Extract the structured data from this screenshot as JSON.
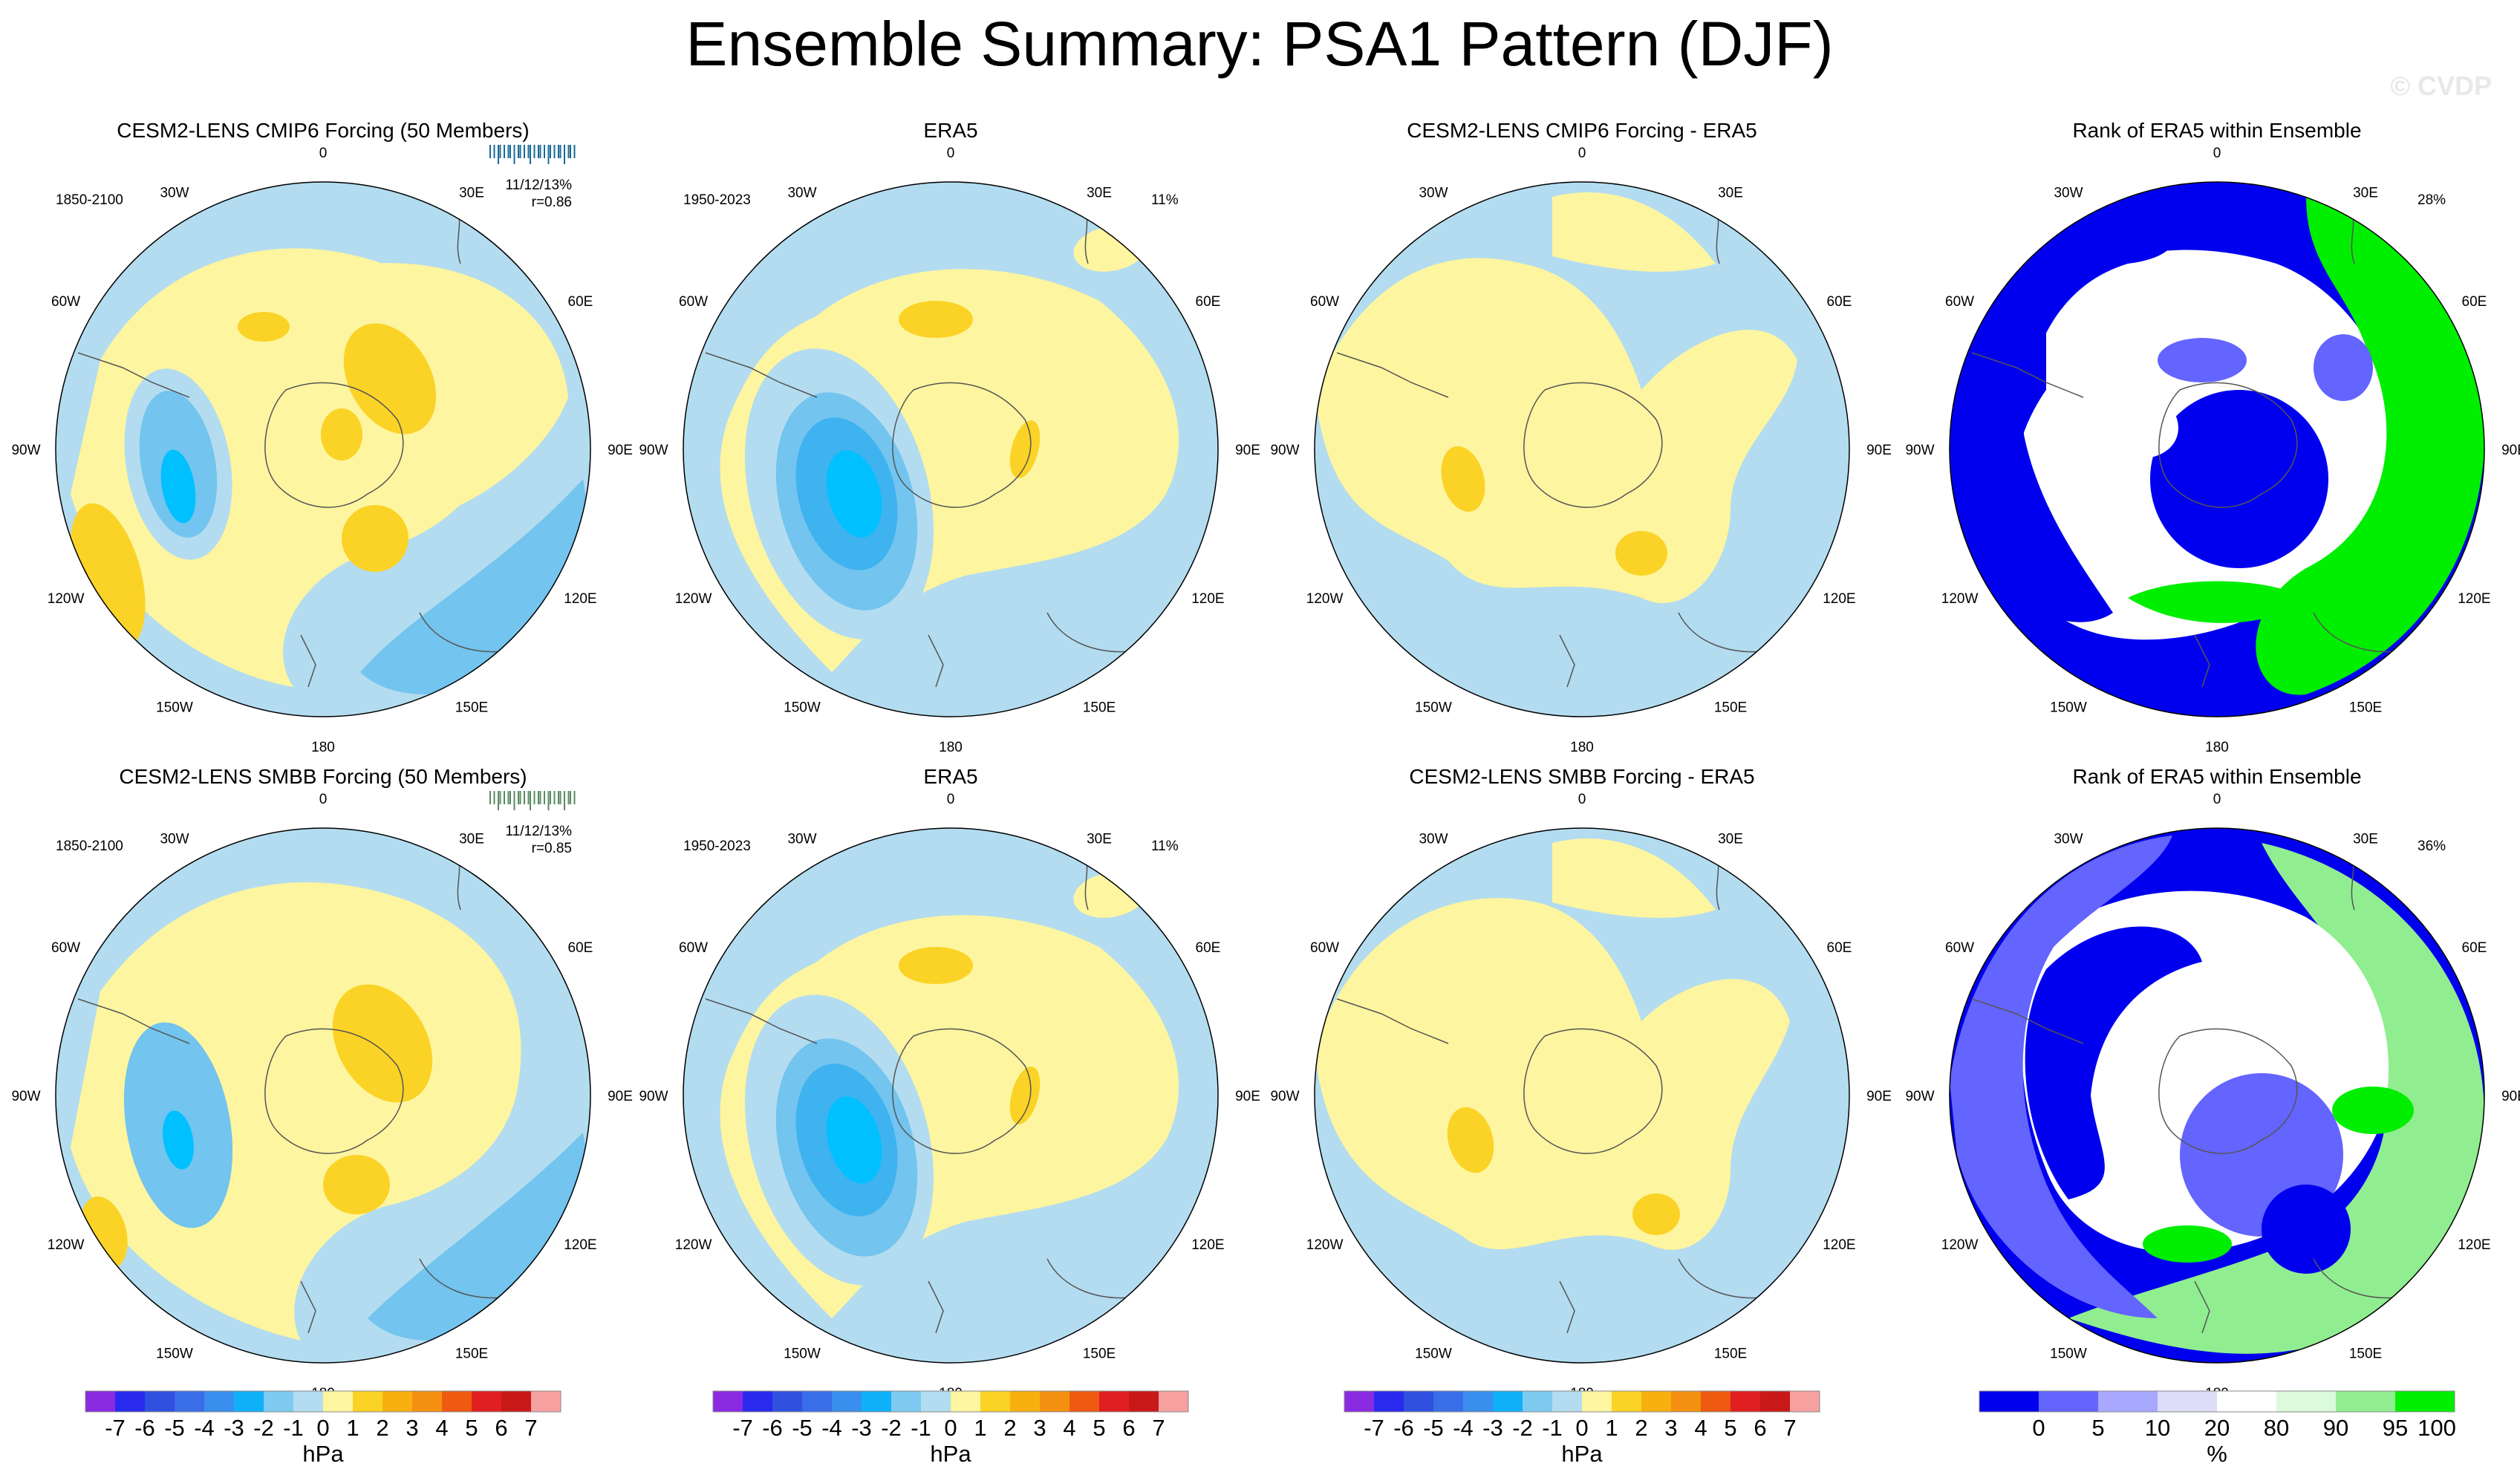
{
  "title": "Ensemble Summary: PSA1 Pattern (DJF)",
  "watermark": "© CVDP",
  "colors": {
    "blue_light": "#b3dcf0",
    "blue_mid": "#73c4ee",
    "blue_dark": "#3fb2f0",
    "blue_core": "#00c0ff",
    "yellow_light": "#fdf5a0",
    "yellow_mid": "#fbd326",
    "rank_dark": "#0000ee",
    "rank_mid": "#6464ff",
    "rank_light": "#ddddfa",
    "rank_green": "#00ee00",
    "rank_green_light": "#90ee90",
    "title_cmip6": "#1a6a96",
    "title_smbb": "#5a8a60"
  },
  "panels": [
    {
      "row": 0,
      "col": 0,
      "kind": "model",
      "title": "CESM2-LENS CMIP6 Forcing (50 Members)",
      "title_color": "#1a6a96",
      "period": "1850-2100",
      "stat": "11/12/13%",
      "corr": "r=0.86",
      "pct": ""
    },
    {
      "row": 0,
      "col": 1,
      "kind": "obs",
      "title": "ERA5",
      "period": "1950-2023",
      "pct": "11%"
    },
    {
      "row": 0,
      "col": 2,
      "kind": "diff",
      "title": "CESM2-LENS CMIP6 Forcing - ERA5",
      "pct": ""
    },
    {
      "row": 0,
      "col": 3,
      "kind": "rank",
      "title": "Rank of ERA5 within Ensemble",
      "pct": "28%"
    },
    {
      "row": 1,
      "col": 0,
      "kind": "model",
      "title": "CESM2-LENS SMBB Forcing (50 Members)",
      "title_color": "#5a8a60",
      "period": "1850-2100",
      "stat": "11/12/13%",
      "corr": "r=0.85",
      "pct": ""
    },
    {
      "row": 1,
      "col": 1,
      "kind": "obs",
      "title": "ERA5",
      "period": "1950-2023",
      "pct": "11%"
    },
    {
      "row": 1,
      "col": 2,
      "kind": "diff",
      "title": "CESM2-LENS SMBB Forcing - ERA5",
      "pct": ""
    },
    {
      "row": 1,
      "col": 3,
      "kind": "rank",
      "title": "Rank of ERA5 within Ensemble",
      "pct": "36%"
    }
  ],
  "lon_labels": [
    "0",
    "30E",
    "60E",
    "90E",
    "120E",
    "150E",
    "180",
    "150W",
    "120W",
    "90W",
    "60W",
    "30W"
  ],
  "chart_data": {
    "type": "heatmap",
    "title": "Ensemble Summary: PSA1 Pattern (DJF)",
    "projection": "South polar stereographic",
    "colorbars": [
      {
        "unit": "hPa",
        "labels": [
          "-7",
          "-6",
          "-5",
          "-4",
          "-3",
          "-2",
          "-1",
          "0",
          "1",
          "2",
          "3",
          "4",
          "5",
          "6",
          "7"
        ],
        "colors": [
          "#8a2be2",
          "#2a2aee",
          "#3050e0",
          "#3a6de8",
          "#3a8eee",
          "#10b0f8",
          "#7ecaf0",
          "#b3dcf0",
          "#fdf5a0",
          "#fbd326",
          "#f8b010",
          "#f39010",
          "#ee5a10",
          "#e02020",
          "#c81818",
          "#f6a0a0"
        ]
      },
      {
        "unit": "hPa",
        "labels": [
          "-7",
          "-6",
          "-5",
          "-4",
          "-3",
          "-2",
          "-1",
          "0",
          "1",
          "2",
          "3",
          "4",
          "5",
          "6",
          "7"
        ],
        "colors": [
          "#8a2be2",
          "#2a2aee",
          "#3050e0",
          "#3a6de8",
          "#3a8eee",
          "#10b0f8",
          "#7ecaf0",
          "#b3dcf0",
          "#fdf5a0",
          "#fbd326",
          "#f8b010",
          "#f39010",
          "#ee5a10",
          "#e02020",
          "#c81818",
          "#f6a0a0"
        ]
      },
      {
        "unit": "hPa",
        "labels": [
          "-7",
          "-6",
          "-5",
          "-4",
          "-3",
          "-2",
          "-1",
          "0",
          "1",
          "2",
          "3",
          "4",
          "5",
          "6",
          "7"
        ],
        "colors": [
          "#8a2be2",
          "#2a2aee",
          "#3050e0",
          "#3a6de8",
          "#3a8eee",
          "#10b0f8",
          "#7ecaf0",
          "#b3dcf0",
          "#fdf5a0",
          "#fbd326",
          "#f8b010",
          "#f39010",
          "#ee5a10",
          "#e02020",
          "#c81818",
          "#f6a0a0"
        ]
      },
      {
        "unit": "%",
        "labels": [
          "0",
          "5",
          "10",
          "20",
          "80",
          "90",
          "95",
          "100"
        ],
        "colors": [
          "#0000ee",
          "#6464ff",
          "#a8a8ff",
          "#ddddfa",
          "#ffffff",
          "#dcfadc",
          "#90ee90",
          "#00ee00"
        ]
      }
    ]
  }
}
